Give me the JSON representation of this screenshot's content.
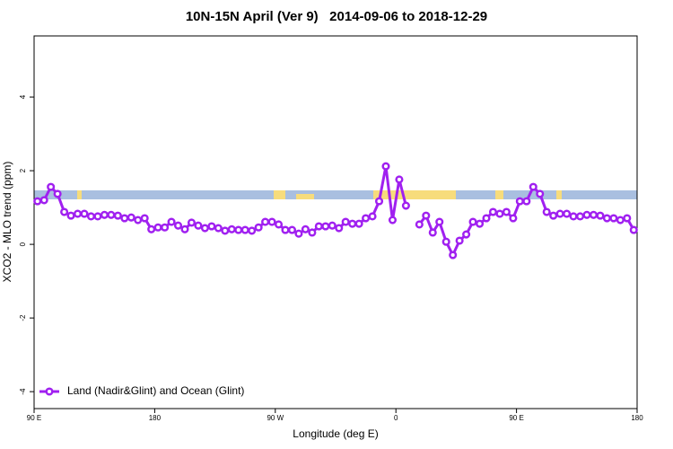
{
  "chart_data": {
    "type": "line",
    "title": "10N-15N April (Ver 9)   2014-09-06 to 2018-12-29",
    "x_label": "Longitude (deg E)",
    "y_label": "XCO2 - MLO trend (ppm)",
    "xlim": [
      90,
      540
    ],
    "ylim": [
      -4.46,
      5.66
    ],
    "xticks": [
      {
        "value": 90,
        "label": "90 E"
      },
      {
        "value": 180,
        "label": "180"
      },
      {
        "value": 270,
        "label": "90 W"
      },
      {
        "value": 360,
        "label": "0"
      },
      {
        "value": 450,
        "label": "90 E"
      },
      {
        "value": 540,
        "label": "180"
      }
    ],
    "yticks": [
      -4,
      -2,
      0,
      2,
      4
    ],
    "legend_position": "bottom-left",
    "x": [
      92.5,
      97.5,
      102.5,
      107.5,
      112.5,
      117.5,
      122.5,
      127.5,
      132.5,
      137.5,
      142.5,
      147.5,
      152.5,
      157.5,
      162.5,
      167.5,
      172.5,
      177.5,
      182.5,
      187.5,
      192.5,
      197.5,
      202.5,
      207.5,
      212.5,
      217.5,
      222.5,
      227.5,
      232.5,
      237.5,
      242.5,
      247.5,
      252.5,
      257.5,
      262.5,
      267.5,
      272.5,
      277.5,
      282.5,
      287.5,
      292.5,
      297.5,
      302.5,
      307.5,
      312.5,
      317.5,
      322.5,
      327.5,
      332.5,
      337.5,
      342.5,
      347.5,
      352.5,
      357.5,
      362.5,
      367.5,
      372.5,
      377.5,
      382.5,
      387.5,
      392.5,
      397.5,
      402.5,
      407.5,
      412.5,
      417.5,
      422.5,
      427.5,
      432.5,
      437.5,
      442.5,
      447.5,
      452.5,
      457.5,
      462.5,
      467.5,
      472.5,
      477.5,
      482.5,
      487.5,
      492.5,
      497.5,
      502.5,
      507.5,
      512.5,
      517.5,
      522.5,
      527.5,
      532.5,
      537.5
    ],
    "series": [
      {
        "name": "Land (Nadir&Glint) and Ocean (Glint)",
        "color": "#a020f0",
        "values": [
          1.17,
          1.2,
          1.56,
          1.37,
          0.88,
          0.78,
          0.83,
          0.83,
          0.76,
          0.76,
          0.8,
          0.8,
          0.78,
          0.71,
          0.73,
          0.66,
          0.71,
          0.41,
          0.46,
          0.46,
          0.61,
          0.51,
          0.41,
          0.59,
          0.51,
          0.44,
          0.49,
          0.44,
          0.37,
          0.41,
          0.39,
          0.39,
          0.37,
          0.46,
          0.61,
          0.61,
          0.54,
          0.39,
          0.39,
          0.29,
          0.41,
          0.32,
          0.49,
          0.49,
          0.51,
          0.44,
          0.61,
          0.56,
          0.56,
          0.71,
          0.76,
          1.17,
          2.12,
          0.66,
          1.76,
          1.05,
          null,
          0.54,
          0.78,
          0.32,
          0.61,
          0.07,
          -0.29,
          0.1,
          0.27,
          0.61,
          0.56,
          0.71,
          0.88,
          0.83,
          0.88,
          0.71,
          1.17,
          1.17,
          1.56,
          1.37,
          0.88,
          0.78,
          0.83,
          0.83,
          0.76,
          0.76,
          0.8,
          0.8,
          0.78,
          0.71,
          0.71,
          0.66,
          0.71,
          0.39
        ]
      }
    ]
  }
}
